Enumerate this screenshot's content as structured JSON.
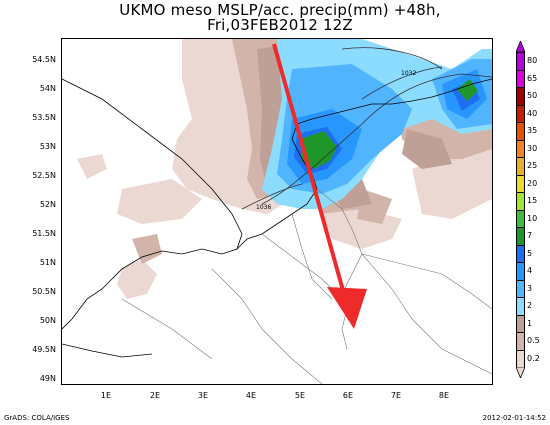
{
  "title": {
    "line1": "UKMO meso MSLP/acc. precip(mm) +48h,",
    "line2": "Fri,03FEB2012 12Z"
  },
  "map": {
    "lat_labels": [
      "54.5N",
      "54N",
      "53.5N",
      "53N",
      "52.5N",
      "52N",
      "51.5N",
      "51N",
      "50.5N",
      "50N",
      "49.5N",
      "49N"
    ],
    "lon_labels": [
      "1E",
      "2E",
      "3E",
      "4E",
      "5E",
      "6E",
      "7E",
      "8E"
    ],
    "isobar_labels": [
      "1032",
      "1036"
    ],
    "arrow_color": "#ee2a2a"
  },
  "colorbar": {
    "levels": [
      {
        "label": "80",
        "color": "#b400dc"
      },
      {
        "label": "65",
        "color": "#dc00dc"
      },
      {
        "label": "50",
        "color": "#a00000"
      },
      {
        "label": "40",
        "color": "#c81e00"
      },
      {
        "label": "35",
        "color": "#e65000"
      },
      {
        "label": "30",
        "color": "#f08228"
      },
      {
        "label": "25",
        "color": "#e6af2d"
      },
      {
        "label": "20",
        "color": "#e6dc32"
      },
      {
        "label": "15",
        "color": "#a0e632"
      },
      {
        "label": "10",
        "color": "#3cbe3c"
      },
      {
        "label": "7",
        "color": "#1e9628"
      },
      {
        "label": "5",
        "color": "#1e6ef0"
      },
      {
        "label": "4",
        "color": "#2896ff"
      },
      {
        "label": "3",
        "color": "#50b4ff"
      },
      {
        "label": "2",
        "color": "#8cdcff"
      },
      {
        "label": "1",
        "color": "#bea096"
      },
      {
        "label": "0.5",
        "color": "#d2b4aa"
      },
      {
        "label": "0.2",
        "color": "#ecd8d2"
      }
    ]
  },
  "footer": {
    "left": "GrADS: COLA/IGES",
    "right": "2012-02-01-14:52"
  }
}
